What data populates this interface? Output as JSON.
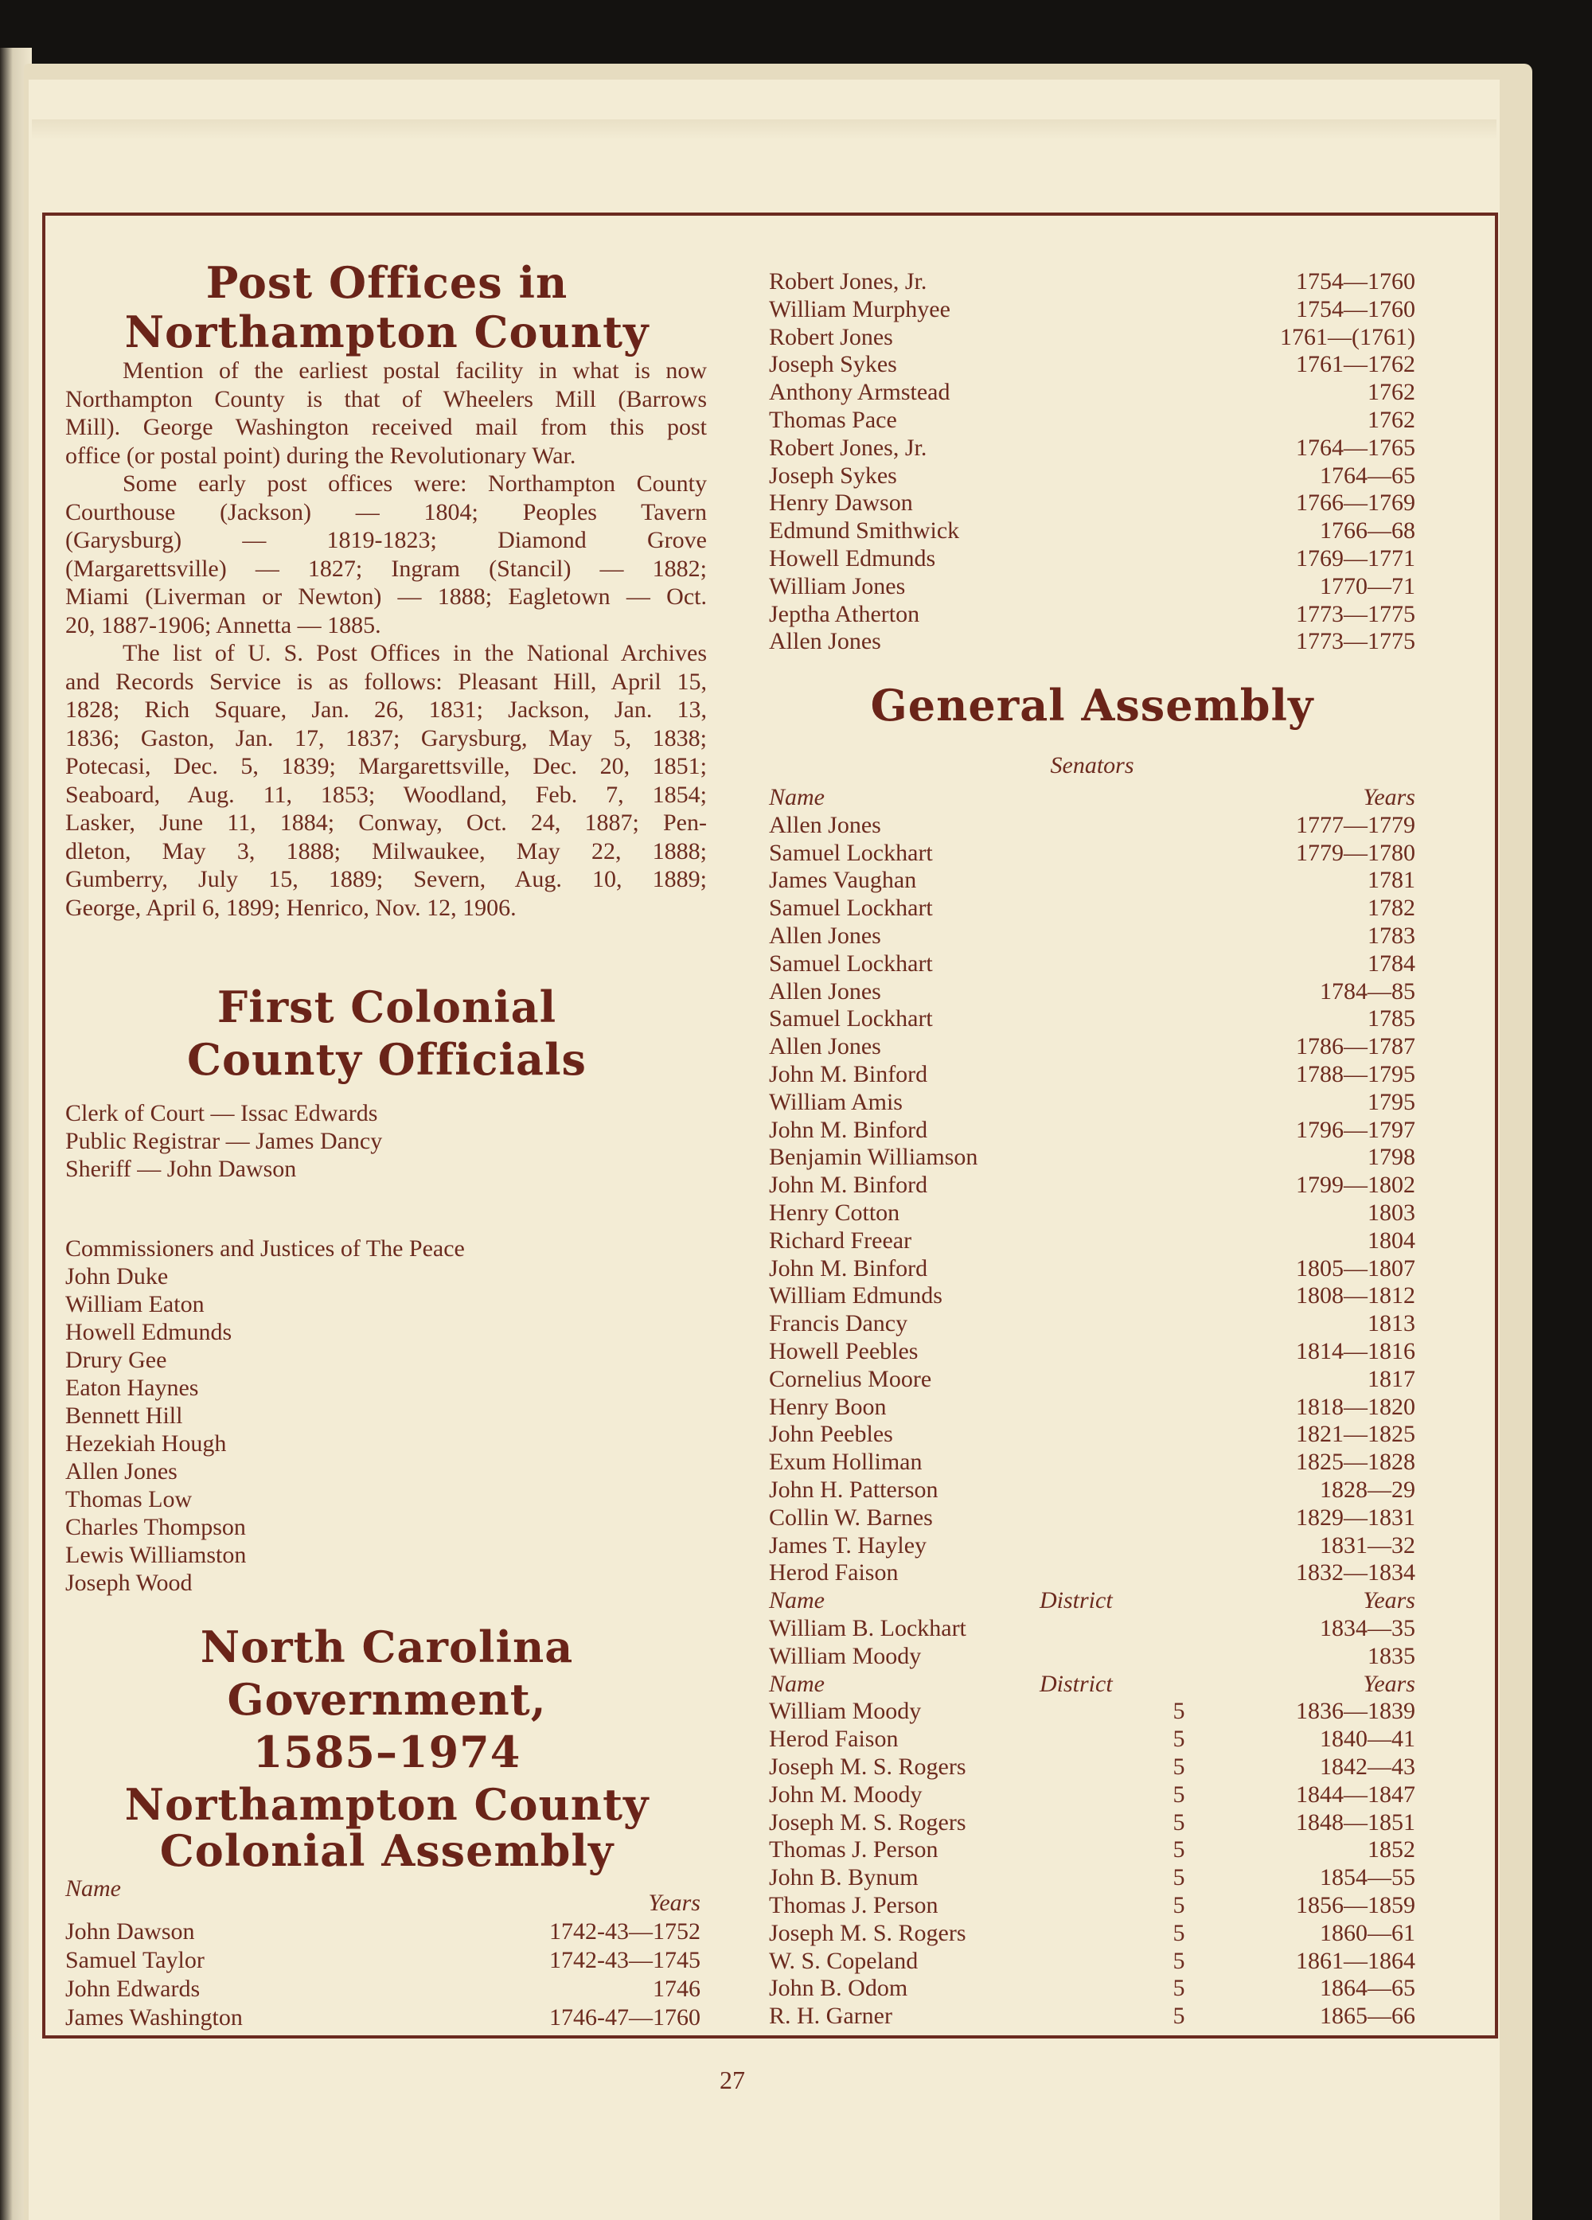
{
  "post_offices": {
    "title_lines": [
      "Post Offices in",
      "Northampton County"
    ],
    "paragraphs": [
      [
        "Mention of the earliest postal facility in what is now",
        "Northampton County is that of Wheelers Mill (Barrows",
        "Mill). George Washington received mail from this post",
        "office (or postal point) during the Revolutionary War."
      ],
      [
        "Some early post offices were: Northampton County",
        "Courthouse (Jackson) — 1804; Peoples Tavern",
        "(Garysburg) — 1819-1823; Diamond Grove",
        "(Margarettsville) — 1827; Ingram (Stancil) — 1882;",
        "Miami (Liverman or Newton) — 1888; Eagletown — Oct.",
        "20, 1887-1906; Annetta — 1885."
      ],
      [
        "The list of U. S. Post Offices in the National Archives",
        "and Records Service is as follows: Pleasant Hill, April 15,",
        "1828; Rich Square, Jan. 26, 1831; Jackson, Jan. 13,",
        "1836; Gaston, Jan. 17, 1837; Garysburg, May 5, 1838;",
        "Potecasi, Dec. 5, 1839; Margarettsville, Dec. 20, 1851;",
        "Seaboard, Aug. 11, 1853; Woodland, Feb. 7, 1854;",
        "Lasker, June 11, 1884; Conway, Oct. 24, 1887; Pen-",
        "dleton, May 3, 1888; Milwaukee, May 22, 1888;",
        "Gumberry, July 15, 1889; Severn, Aug. 10, 1889;",
        "George, April 6, 1899; Henrico, Nov. 12, 1906."
      ]
    ]
  },
  "first_colonial": {
    "title_lines": [
      "First Colonial",
      "County Officials"
    ],
    "officials": [
      "Clerk of Court — Issac Edwards",
      "Public Registrar — James Dancy",
      "Sheriff — John Dawson"
    ],
    "commissioners_heading": "Commissioners and Justices of The Peace",
    "commissioners": [
      "John Duke",
      "William Eaton",
      "Howell Edmunds",
      "Drury Gee",
      "Eaton Haynes",
      "Bennett Hill",
      "Hezekiah Hough",
      "Allen Jones",
      "Thomas Low",
      "Charles Thompson",
      "Lewis Williamston",
      "Joseph Wood"
    ]
  },
  "nc_government": {
    "title_lines": [
      "North Carolina",
      "Government,",
      "1585–1974"
    ]
  },
  "colonial_assembly": {
    "title_lines": [
      "Northampton County",
      "Colonial Assembly"
    ],
    "name_header": "Name",
    "years_header": "Years",
    "rows": [
      {
        "name": "John Dawson",
        "years": "1742-43—1752"
      },
      {
        "name": "Samuel Taylor",
        "years": "1742-43—1745"
      },
      {
        "name": "John Edwards",
        "years": "1746"
      },
      {
        "name": "James Washington",
        "years": "1746-47—1760"
      }
    ],
    "continued_rows": [
      {
        "name": "Robert Jones, Jr.",
        "years": "1754—1760"
      },
      {
        "name": "William Murphyee",
        "years": "1754—1760"
      },
      {
        "name": "Robert Jones",
        "years": "1761—(1761)"
      },
      {
        "name": "Joseph Sykes",
        "years": "1761—1762"
      },
      {
        "name": "Anthony Armstead",
        "years": "1762"
      },
      {
        "name": "Thomas Pace",
        "years": "1762"
      },
      {
        "name": "Robert Jones, Jr.",
        "years": "1764—1765"
      },
      {
        "name": "Joseph Sykes",
        "years": "1764—65"
      },
      {
        "name": "Henry Dawson",
        "years": "1766—1769"
      },
      {
        "name": "Edmund Smithwick",
        "years": "1766—68"
      },
      {
        "name": "Howell Edmunds",
        "years": "1769—1771"
      },
      {
        "name": "William Jones",
        "years": "1770—71"
      },
      {
        "name": "Jeptha Atherton",
        "years": "1773—1775"
      },
      {
        "name": "Allen Jones",
        "years": "1773—1775"
      }
    ]
  },
  "general_assembly": {
    "title": "General Assembly",
    "senators_label": "Senators",
    "senators_header": {
      "name": "Name",
      "years": "Years"
    },
    "senators": [
      {
        "name": "Allen Jones",
        "years": "1777—1779"
      },
      {
        "name": "Samuel Lockhart",
        "years": "1779—1780"
      },
      {
        "name": "James Vaughan",
        "years": "1781"
      },
      {
        "name": "Samuel Lockhart",
        "years": "1782"
      },
      {
        "name": "Allen Jones",
        "years": "1783"
      },
      {
        "name": "Samuel Lockhart",
        "years": "1784"
      },
      {
        "name": "Allen Jones",
        "years": "1784—85"
      },
      {
        "name": "Samuel Lockhart",
        "years": "1785"
      },
      {
        "name": "Allen Jones",
        "years": "1786—1787"
      },
      {
        "name": "John M. Binford",
        "years": "1788—1795"
      },
      {
        "name": "William Amis",
        "years": "1795"
      },
      {
        "name": "John M. Binford",
        "years": "1796—1797"
      },
      {
        "name": "Benjamin Williamson",
        "years": "1798"
      },
      {
        "name": "John M. Binford",
        "years": "1799—1802"
      },
      {
        "name": "Henry Cotton",
        "years": "1803"
      },
      {
        "name": "Richard Freear",
        "years": "1804"
      },
      {
        "name": "John M. Binford",
        "years": "1805—1807"
      },
      {
        "name": "William Edmunds",
        "years": "1808—1812"
      },
      {
        "name": "Francis Dancy",
        "years": "1813"
      },
      {
        "name": "Howell Peebles",
        "years": "1814—1816"
      },
      {
        "name": "Cornelius Moore",
        "years": "1817"
      },
      {
        "name": "Henry Boon",
        "years": "1818—1820"
      },
      {
        "name": "John Peebles",
        "years": "1821—1825"
      },
      {
        "name": "Exum Holliman",
        "years": "1825—1828"
      },
      {
        "name": "John H. Patterson",
        "years": "1828—29"
      },
      {
        "name": "Collin W. Barnes",
        "years": "1829—1831"
      },
      {
        "name": "James T. Hayley",
        "years": "1831—32"
      },
      {
        "name": "Herod Faison",
        "years": "1832—1834"
      }
    ],
    "sections": [
      {
        "header": {
          "name": "Name",
          "district": "District",
          "years": "Years"
        },
        "rows": [
          {
            "name": "William B. Lockhart",
            "district": "",
            "years": "1834—35"
          },
          {
            "name": "William Moody",
            "district": "",
            "years": "1835"
          }
        ]
      },
      {
        "header": {
          "name": "Name",
          "district": "District",
          "years": "Years"
        },
        "rows": [
          {
            "name": "William Moody",
            "district": "5",
            "years": "1836—1839"
          },
          {
            "name": "Herod Faison",
            "district": "5",
            "years": "1840—41"
          },
          {
            "name": "Joseph M. S. Rogers",
            "district": "5",
            "years": "1842—43"
          },
          {
            "name": "John M. Moody",
            "district": "5",
            "years": "1844—1847"
          },
          {
            "name": "Joseph M. S. Rogers",
            "district": "5",
            "years": "1848—1851"
          },
          {
            "name": "Thomas J. Person",
            "district": "5",
            "years": "1852"
          },
          {
            "name": "John B. Bynum",
            "district": "5",
            "years": "1854—55"
          },
          {
            "name": "Thomas J. Person",
            "district": "5",
            "years": "1856—1859"
          },
          {
            "name": "Joseph M. S. Rogers",
            "district": "5",
            "years": "1860—61"
          },
          {
            "name": "W. S. Copeland",
            "district": "5",
            "years": "1861—1864"
          },
          {
            "name": "John B. Odom",
            "district": "5",
            "years": "1864—65"
          },
          {
            "name": "R. H. Garner",
            "district": "5",
            "years": "1865—66"
          }
        ]
      }
    ]
  },
  "page_number": "27"
}
